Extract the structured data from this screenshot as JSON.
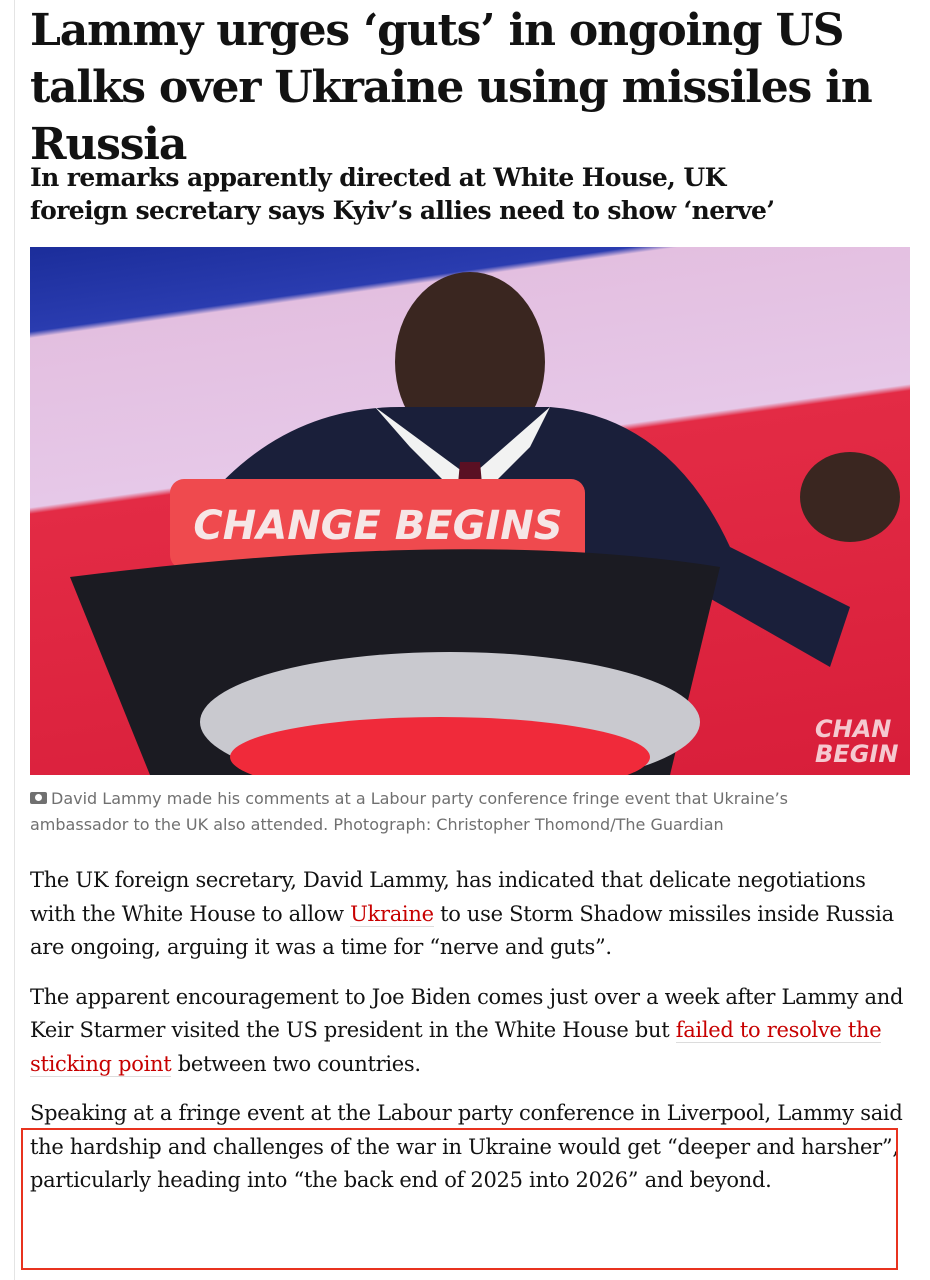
{
  "article": {
    "headline": "Lammy urges ‘guts’ in ongoing US talks over Ukraine using missiles in Russia",
    "standfirst": "In remarks apparently directed at White House, UK foreign secretary says Kyiv’s allies need to show ‘nerve’",
    "image": {
      "podium_sign": "CHANGE BEGINS",
      "background_sign": "CHANGE BEGINS",
      "caption_icon": "camera-icon",
      "caption": "David Lammy made his comments at a Labour party conference fringe event that Ukraine’s ambassador to the UK also attended. Photograph: Christopher Thomond/The Guardian"
    },
    "paragraphs": [
      {
        "before": "The UK foreign secretary, David Lammy, has indicated that delicate negotiations with the White House to allow ",
        "link": "Ukraine",
        "after": " to use Storm Shadow missiles inside Russia are ongoing, arguing it was a time for “nerve and guts”."
      },
      {
        "before": "The apparent encouragement to Joe Biden comes just over a week after Lammy and Keir Starmer visited the US president in the White House but ",
        "link": "failed to resolve the sticking point",
        "after": " between two countries."
      },
      {
        "text": "Speaking at a fringe event at the Labour party conference in Liverpool, Lammy said the hardship and challenges of the war in Ukraine would get “deeper and harsher”, particularly heading into “the back end of 2025 into 2026” and beyond."
      }
    ]
  },
  "colors": {
    "link": "#c70000",
    "highlight_box": "#e8331f"
  }
}
